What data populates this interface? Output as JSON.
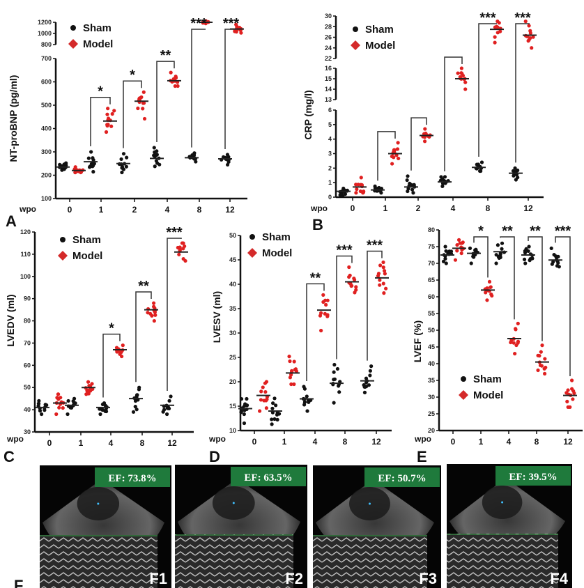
{
  "chart_data": [
    {
      "panel": "A",
      "type": "scatter",
      "ylabel": "NT-proBNP (pg/ml)",
      "xlabel": "wpo",
      "categories": [
        "0",
        "1",
        "2",
        "4",
        "8",
        "12"
      ],
      "y_segments": [
        [
          100,
          700
        ],
        [
          800,
          1200
        ]
      ],
      "y_ticks": [
        100,
        200,
        300,
        400,
        500,
        600,
        700,
        800,
        1000,
        1200
      ],
      "series": [
        {
          "name": "Sham",
          "color": "#111111",
          "marker": "circle",
          "mean": [
            235,
            258,
            250,
            272,
            275,
            270
          ],
          "min": [
            222,
            215,
            212,
            238,
            258,
            245
          ],
          "max": [
            252,
            300,
            292,
            318,
            295,
            288
          ]
        },
        {
          "name": "Model",
          "color": "#e02020",
          "marker": "diamond",
          "mean": [
            220,
            432,
            517,
            605,
            1200,
            1080
          ],
          "min": [
            212,
            385,
            442,
            582,
            1180,
            1010
          ],
          "max": [
            235,
            486,
            556,
            640,
            1225,
            1160
          ]
        }
      ],
      "significance": [
        "",
        "*",
        "*",
        "**",
        "***",
        "***"
      ],
      "brackets": [
        false,
        true,
        true,
        true,
        true,
        true
      ]
    },
    {
      "panel": "B",
      "type": "scatter",
      "ylabel": "CRP (mg/l)",
      "xlabel": "wpo",
      "categories": [
        "0",
        "1",
        "2",
        "4",
        "8",
        "12"
      ],
      "y_segments": [
        [
          0,
          6
        ],
        [
          13,
          16
        ],
        [
          22,
          30
        ]
      ],
      "y_ticks": [
        0,
        1,
        2,
        3,
        4,
        5,
        6,
        13,
        14,
        15,
        16,
        22,
        24,
        26,
        28,
        30
      ],
      "series": [
        {
          "name": "Sham",
          "color": "#111111",
          "marker": "circle",
          "mean": [
            0.4,
            0.5,
            0.7,
            1.05,
            2.05,
            1.65
          ],
          "min": [
            0.1,
            0.3,
            0.3,
            0.75,
            1.8,
            1.2
          ],
          "max": [
            0.6,
            0.75,
            1.45,
            1.4,
            2.4,
            2.0
          ]
        },
        {
          "name": "Model",
          "color": "#e02020",
          "marker": "diamond",
          "mean": [
            0.7,
            3.0,
            4.25,
            15.0,
            27.5,
            26.4
          ],
          "min": [
            0.3,
            2.3,
            3.85,
            14.0,
            25.0,
            24.0
          ],
          "max": [
            1.35,
            3.75,
            4.7,
            16.0,
            29.0,
            29.0
          ]
        }
      ],
      "significance": [
        "",
        "",
        "",
        "",
        "***",
        "***"
      ],
      "brackets": [
        false,
        true,
        true,
        true,
        true,
        true
      ]
    },
    {
      "panel": "C",
      "type": "scatter",
      "ylabel": "LVEDV (ml)",
      "xlabel": "wpo",
      "categories": [
        "0",
        "1",
        "4",
        "8",
        "12"
      ],
      "y_segments": [
        [
          30,
          120
        ]
      ],
      "y_ticks": [
        30,
        40,
        50,
        60,
        70,
        80,
        90,
        100,
        110,
        120
      ],
      "series": [
        {
          "name": "Sham",
          "color": "#111111",
          "marker": "circle",
          "mean": [
            41,
            42,
            41,
            45,
            42
          ],
          "min": [
            38,
            38,
            38,
            39,
            38
          ],
          "max": [
            44,
            45,
            43,
            50,
            46
          ]
        },
        {
          "name": "Model",
          "color": "#e02020",
          "marker": "diamond",
          "mean": [
            43,
            50,
            67,
            85,
            111
          ],
          "min": [
            38,
            47,
            64,
            80,
            107
          ],
          "max": [
            47,
            52.5,
            69,
            88,
            115
          ]
        }
      ],
      "significance": [
        "",
        "",
        "*",
        "**",
        "***"
      ],
      "brackets": [
        false,
        false,
        true,
        true,
        true
      ]
    },
    {
      "panel": "D",
      "type": "scatter",
      "ylabel": "LVESV (ml)",
      "xlabel": "wpo",
      "categories": [
        "0",
        "1",
        "4",
        "8",
        "12"
      ],
      "y_segments": [
        [
          10,
          50
        ]
      ],
      "y_ticks": [
        10,
        15,
        20,
        25,
        30,
        35,
        40,
        45,
        50
      ],
      "series": [
        {
          "name": "Sham",
          "color": "#111111",
          "marker": "circle",
          "mean": [
            14.5,
            14,
            16.5,
            19.7,
            20.2
          ],
          "min": [
            11.5,
            11.3,
            14,
            15.7,
            17.8
          ],
          "max": [
            16.5,
            16.6,
            19,
            23.5,
            23.2
          ]
        },
        {
          "name": "Model",
          "color": "#e02020",
          "marker": "diamond",
          "mean": [
            17.2,
            21.8,
            34.7,
            40.5,
            41.3
          ],
          "min": [
            14,
            19.5,
            30.5,
            38.3,
            38.2
          ],
          "max": [
            20,
            25.2,
            37.8,
            43.5,
            44.5
          ]
        }
      ],
      "significance": [
        "",
        "",
        "**",
        "***",
        "***"
      ],
      "brackets": [
        false,
        false,
        true,
        true,
        true
      ]
    },
    {
      "panel": "E",
      "type": "scatter",
      "ylabel": "LVEF (%)",
      "xlabel": "wpo",
      "categories": [
        "0",
        "1",
        "4",
        "8",
        "12"
      ],
      "y_segments": [
        [
          20,
          80
        ]
      ],
      "y_ticks": [
        20,
        25,
        30,
        35,
        40,
        45,
        50,
        55,
        60,
        65,
        70,
        75,
        80
      ],
      "series": [
        {
          "name": "Sham",
          "color": "#111111",
          "marker": "circle",
          "mean": [
            72.5,
            73,
            73.5,
            72.5,
            71
          ],
          "min": [
            70,
            70,
            70,
            70,
            69
          ],
          "max": [
            75,
            74.5,
            76,
            75,
            74.5
          ]
        },
        {
          "name": "Model",
          "color": "#e02020",
          "marker": "diamond",
          "mean": [
            74.5,
            62,
            47.5,
            40.5,
            30.5
          ],
          "min": [
            71,
            59,
            43,
            37,
            27
          ],
          "max": [
            77,
            64.5,
            52,
            45.5,
            35
          ]
        }
      ],
      "significance": [
        "",
        "*",
        "**",
        "**",
        "***"
      ],
      "brackets": [
        false,
        true,
        true,
        true,
        true
      ]
    }
  ],
  "legend": {
    "sham": "Sham",
    "model": "Model"
  },
  "panel_F": {
    "letter": "F",
    "images": [
      {
        "label": "F1",
        "ef": "EF: 73.8%"
      },
      {
        "label": "F2",
        "ef": "EF: 63.5%"
      },
      {
        "label": "F3",
        "ef": "EF: 50.7%"
      },
      {
        "label": "F4",
        "ef": "EF: 39.5%"
      }
    ],
    "ef_box_color": "#1f7a3c"
  }
}
